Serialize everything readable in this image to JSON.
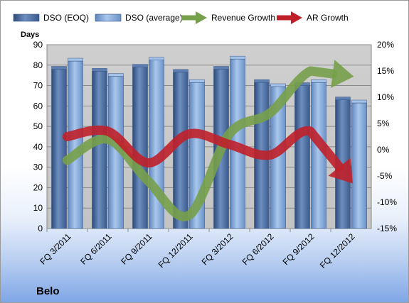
{
  "chart_data": {
    "type": "bar",
    "title": "",
    "company": "Belo",
    "categories": [
      "FQ 3/2011",
      "FQ 6/2011",
      "FQ 9/2011",
      "FQ 12/2011",
      "FQ 3/2012",
      "FQ 6/2012",
      "FQ 9/2012",
      "FQ 12/2012"
    ],
    "ylabel": "Days",
    "ylim": [
      0,
      90
    ],
    "yticks": [
      0,
      10,
      20,
      30,
      40,
      50,
      60,
      70,
      80,
      90
    ],
    "y2lim": [
      -15,
      20
    ],
    "y2ticks": [
      "-15%",
      "-10%",
      "-5%",
      "0%",
      "5%",
      "10%",
      "15%",
      "20%"
    ],
    "y2values": [
      -15,
      -10,
      -5,
      0,
      5,
      10,
      15,
      20
    ],
    "grid": true,
    "legend_position": "top",
    "series": [
      {
        "name": "DSO (EOQ)",
        "type": "bar",
        "axis": "left",
        "color": "#4f6fa0",
        "values": [
          78,
          77,
          79,
          76.5,
          78,
          71.5,
          70,
          63
        ]
      },
      {
        "name": "DSO (average)",
        "type": "bar",
        "axis": "left",
        "color": "#8fb4e0",
        "values": [
          82,
          74.5,
          82.5,
          71.5,
          83,
          69.5,
          71.5,
          61.5
        ]
      },
      {
        "name": "Revenue Growth",
        "type": "line-arrow",
        "axis": "right",
        "color": "#77a04a",
        "values": [
          -2,
          2,
          -6,
          -12.5,
          3,
          7,
          15,
          14
        ]
      },
      {
        "name": "AR Growth",
        "type": "line-arrow",
        "axis": "right",
        "color": "#c0202a",
        "values": [
          2.5,
          3.5,
          -2.5,
          3,
          1,
          -1,
          3.5,
          -6
        ]
      }
    ]
  }
}
